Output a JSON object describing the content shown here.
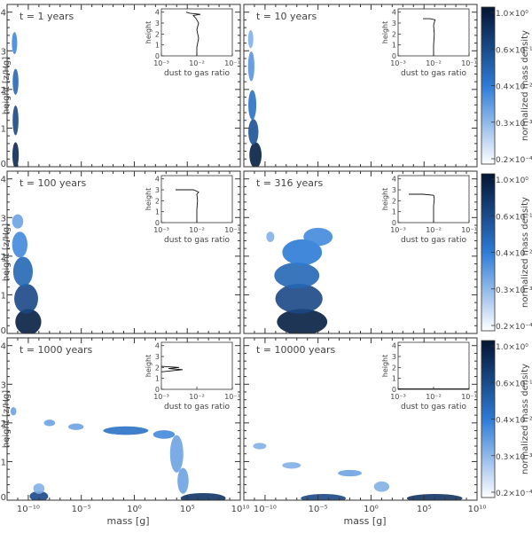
{
  "figure": {
    "ylabel": "height [z/Hg]",
    "xlabel": "mass [g]",
    "colorbar_label": "normalized mass density",
    "colormap": {
      "low": "#ffffff",
      "mid": "#2e7bd6",
      "high": "#031533"
    }
  },
  "chart_data": [
    {
      "type": "heatmap",
      "title": "t = 1 years",
      "xlim_log10": [
        -12,
        10
      ],
      "ylim": [
        0,
        4.2
      ],
      "xticks": [
        "10⁻¹⁰",
        "10⁻⁵",
        "10⁰",
        "10⁵",
        "10¹⁰"
      ],
      "yticks": [
        "0",
        "1",
        "2",
        "3",
        "4"
      ],
      "blobs": [
        {
          "x": -11.2,
          "y": 0.3,
          "w": 0.35,
          "h": 0.6,
          "v": 0.9
        },
        {
          "x": -11.2,
          "y": 1.2,
          "w": 0.3,
          "h": 0.7,
          "v": 0.75
        },
        {
          "x": -11.2,
          "y": 2.2,
          "w": 0.3,
          "h": 0.6,
          "v": 0.6
        },
        {
          "x": -11.3,
          "y": 3.2,
          "w": 0.25,
          "h": 0.5,
          "v": 0.45
        }
      ],
      "inset": {
        "xlabel": "dust to gas ratio",
        "ylabel": "height",
        "xticks": [
          "10⁻³",
          "10⁻²",
          "10⁻¹"
        ],
        "yticks": [
          "0",
          "1",
          "2",
          "3",
          "4"
        ],
        "profile": [
          [
            -2.0,
            0
          ],
          [
            -2.0,
            0.8
          ],
          [
            -1.95,
            1.6
          ],
          [
            -2.0,
            2.4
          ],
          [
            -1.95,
            3.0
          ],
          [
            -2.02,
            3.4
          ],
          [
            -2.1,
            3.7
          ],
          [
            -1.9,
            3.8
          ],
          [
            -2.2,
            3.9
          ],
          [
            -2.3,
            4.0
          ]
        ]
      },
      "colorbar": {
        "ticks": [
          "1.0×10⁰",
          "0.6×10⁻¹",
          "0.4×10⁻²",
          "0.3×10⁻³",
          "0.2×10⁻⁴"
        ]
      }
    },
    {
      "type": "heatmap",
      "title": "t = 10 years",
      "xlim_log10": [
        -12,
        10
      ],
      "ylim": [
        0,
        4.2
      ],
      "xticks": [
        "10⁻¹⁰",
        "10⁻⁵",
        "10⁰",
        "10⁵",
        "10¹⁰"
      ],
      "yticks": [
        "0",
        "1",
        "2",
        "3",
        "4"
      ],
      "blobs": [
        {
          "x": -10.9,
          "y": 0.3,
          "w": 0.9,
          "h": 0.6,
          "v": 0.95
        },
        {
          "x": -11.1,
          "y": 0.9,
          "w": 0.7,
          "h": 0.6,
          "v": 0.7
        },
        {
          "x": -11.2,
          "y": 1.6,
          "w": 0.5,
          "h": 0.7,
          "v": 0.55
        },
        {
          "x": -11.3,
          "y": 2.6,
          "w": 0.35,
          "h": 0.7,
          "v": 0.4
        },
        {
          "x": -11.35,
          "y": 3.3,
          "w": 0.25,
          "h": 0.4,
          "v": 0.3
        }
      ],
      "inset": {
        "xlabel": "dust to gas ratio",
        "ylabel": "height",
        "xticks": [
          "10⁻³",
          "10⁻²",
          "10⁻¹"
        ],
        "yticks": [
          "0",
          "1",
          "2",
          "3",
          "4"
        ],
        "profile": [
          [
            -2.0,
            0
          ],
          [
            -2.0,
            1.0
          ],
          [
            -1.98,
            2.0
          ],
          [
            -2.0,
            2.8
          ],
          [
            -1.96,
            3.3
          ],
          [
            -2.1,
            3.4
          ],
          [
            -2.3,
            3.4
          ]
        ]
      },
      "colorbar": {
        "ticks": [
          "1.0×10⁰",
          "0.6×10⁻¹",
          "0.4×10⁻²",
          "0.3×10⁻³",
          "0.2×10⁻⁴"
        ]
      }
    },
    {
      "type": "heatmap",
      "title": "t = 100 years",
      "xlim_log10": [
        -12,
        10
      ],
      "ylim": [
        0,
        4.2
      ],
      "xticks": [
        "10⁻¹⁰",
        "10⁻⁵",
        "10⁰",
        "10⁵",
        "10¹⁰"
      ],
      "yticks": [
        "0",
        "1",
        "2",
        "3",
        "4"
      ],
      "blobs": [
        {
          "x": -10.0,
          "y": 0.3,
          "w": 2.2,
          "h": 0.6,
          "v": 0.95
        },
        {
          "x": -10.2,
          "y": 0.9,
          "w": 2.0,
          "h": 0.7,
          "v": 0.75
        },
        {
          "x": -10.5,
          "y": 1.6,
          "w": 1.6,
          "h": 0.7,
          "v": 0.6
        },
        {
          "x": -10.8,
          "y": 2.3,
          "w": 1.2,
          "h": 0.6,
          "v": 0.45
        },
        {
          "x": -11.0,
          "y": 2.9,
          "w": 0.8,
          "h": 0.3,
          "v": 0.35
        }
      ],
      "inset": {
        "xlabel": "dust to gas ratio",
        "ylabel": "height",
        "xticks": [
          "10⁻³",
          "10⁻²",
          "10⁻¹"
        ],
        "yticks": [
          "0",
          "1",
          "2",
          "3",
          "4"
        ],
        "profile": [
          [
            -2.0,
            0
          ],
          [
            -2.0,
            1.2
          ],
          [
            -1.98,
            2.0
          ],
          [
            -2.0,
            2.6
          ],
          [
            -1.95,
            2.8
          ],
          [
            -2.1,
            3.0
          ],
          [
            -2.6,
            3.0
          ]
        ]
      },
      "colorbar": {
        "ticks": [
          "1.0×10⁰",
          "0.6×10⁻¹",
          "0.4×10⁻²",
          "0.3×10⁻³",
          "0.2×10⁻⁴"
        ]
      }
    },
    {
      "type": "heatmap",
      "title": "t = 316 years",
      "xlim_log10": [
        -12,
        10
      ],
      "ylim": [
        0,
        4.2
      ],
      "xticks": [
        "10⁻¹⁰",
        "10⁻⁵",
        "10⁰",
        "10⁵",
        "10¹⁰"
      ],
      "yticks": [
        "0",
        "1",
        "2",
        "3",
        "4"
      ],
      "blobs": [
        {
          "x": -6.5,
          "y": 0.3,
          "w": 4.5,
          "h": 0.6,
          "v": 0.95
        },
        {
          "x": -6.8,
          "y": 0.9,
          "w": 4.2,
          "h": 0.7,
          "v": 0.75
        },
        {
          "x": -7.0,
          "y": 1.5,
          "w": 4.0,
          "h": 0.6,
          "v": 0.6
        },
        {
          "x": -6.5,
          "y": 2.1,
          "w": 3.5,
          "h": 0.6,
          "v": 0.5
        },
        {
          "x": -5.0,
          "y": 2.5,
          "w": 2.5,
          "h": 0.4,
          "v": 0.45
        },
        {
          "x": -9.5,
          "y": 2.5,
          "w": 0.5,
          "h": 0.2,
          "v": 0.3
        }
      ],
      "inset": {
        "xlabel": "dust to gas ratio",
        "ylabel": "height",
        "xticks": [
          "10⁻³",
          "10⁻²",
          "10⁻¹"
        ],
        "yticks": [
          "0",
          "1",
          "2",
          "3",
          "4"
        ],
        "profile": [
          [
            -2.0,
            0
          ],
          [
            -2.0,
            1.5
          ],
          [
            -1.98,
            2.2
          ],
          [
            -2.0,
            2.5
          ],
          [
            -2.3,
            2.6
          ],
          [
            -2.7,
            2.6
          ]
        ]
      },
      "colorbar": {
        "ticks": [
          "1.0×10⁰",
          "0.6×10⁻¹",
          "0.4×10⁻²",
          "0.3×10⁻³",
          "0.2×10⁻⁴"
        ]
      }
    },
    {
      "type": "heatmap",
      "title": "t = 1000 years",
      "xlim_log10": [
        -12,
        10
      ],
      "ylim": [
        0,
        4.2
      ],
      "xticks": [
        "10⁻¹⁰",
        "10⁻⁵",
        "10⁰",
        "10⁵",
        "10¹⁰"
      ],
      "yticks": [
        "0",
        "1",
        "2",
        "3",
        "4"
      ],
      "blobs": [
        {
          "x": -11.4,
          "y": 2.3,
          "w": 0.3,
          "h": 0.15,
          "v": 0.35
        },
        {
          "x": -8.0,
          "y": 2.0,
          "w": 0.8,
          "h": 0.1,
          "v": 0.35
        },
        {
          "x": -5.5,
          "y": 1.9,
          "w": 1.2,
          "h": 0.1,
          "v": 0.35
        },
        {
          "x": -0.8,
          "y": 1.8,
          "w": 4.0,
          "h": 0.15,
          "v": 0.55
        },
        {
          "x": 2.8,
          "y": 1.7,
          "w": 1.8,
          "h": 0.15,
          "v": 0.45
        },
        {
          "x": 4.0,
          "y": 1.2,
          "w": 1.0,
          "h": 0.9,
          "v": 0.35
        },
        {
          "x": 4.6,
          "y": 0.5,
          "w": 0.8,
          "h": 0.6,
          "v": 0.35
        },
        {
          "x": -9.0,
          "y": 0.1,
          "w": 1.5,
          "h": 0.2,
          "v": 0.75
        },
        {
          "x": -9.0,
          "y": 0.3,
          "w": 0.8,
          "h": 0.2,
          "v": 0.3
        },
        {
          "x": 6.5,
          "y": 0.05,
          "w": 4.0,
          "h": 0.2,
          "v": 0.85
        }
      ],
      "inset": {
        "xlabel": "dust to gas ratio",
        "ylabel": "height",
        "xticks": [
          "10⁻³",
          "10⁻²",
          "10⁻¹"
        ],
        "yticks": [
          "0",
          "1",
          "2",
          "3",
          "4"
        ],
        "profile": [
          [
            -3.0,
            1.6
          ],
          [
            -2.4,
            1.8
          ],
          [
            -2.8,
            1.9
          ],
          [
            -2.5,
            2.0
          ],
          [
            -3.0,
            2.1
          ]
        ]
      },
      "colorbar": {
        "ticks": [
          "1.0×10⁰",
          "0.6×10⁻¹",
          "0.4×10⁻²",
          "0.3×10⁻³",
          "0.2×10⁻⁴"
        ]
      }
    },
    {
      "type": "heatmap",
      "title": "t = 10000 years",
      "xlim_log10": [
        -12,
        10
      ],
      "ylim": [
        0,
        4.2
      ],
      "xticks": [
        "10⁻¹⁰",
        "10⁻⁵",
        "10⁰",
        "10⁵",
        "10¹⁰"
      ],
      "yticks": [
        "0",
        "1",
        "2",
        "3",
        "4"
      ],
      "blobs": [
        {
          "x": -10.5,
          "y": 1.4,
          "w": 1.0,
          "h": 0.1,
          "v": 0.3
        },
        {
          "x": -7.5,
          "y": 0.9,
          "w": 1.5,
          "h": 0.1,
          "v": 0.3
        },
        {
          "x": -2.0,
          "y": 0.7,
          "w": 2.0,
          "h": 0.1,
          "v": 0.35
        },
        {
          "x": 1.0,
          "y": 0.35,
          "w": 1.2,
          "h": 0.2,
          "v": 0.3
        },
        {
          "x": -4.5,
          "y": 0.05,
          "w": 4.0,
          "h": 0.15,
          "v": 0.75
        },
        {
          "x": 6.0,
          "y": 0.05,
          "w": 5.0,
          "h": 0.15,
          "v": 0.85
        }
      ],
      "inset": {
        "xlabel": "dust to gas ratio",
        "ylabel": "height",
        "xticks": [
          "10⁻³",
          "10⁻²",
          "10⁻¹"
        ],
        "yticks": [
          "0",
          "1",
          "2",
          "3",
          "4"
        ],
        "profile": [
          [
            -3.0,
            0.05
          ],
          [
            -1.0,
            0.05
          ]
        ]
      },
      "colorbar": {
        "ticks": [
          "1.0×10⁰",
          "0.6×10⁻¹",
          "0.4×10⁻²",
          "0.3×10⁻³",
          "0.2×10⁻⁴"
        ]
      }
    }
  ]
}
